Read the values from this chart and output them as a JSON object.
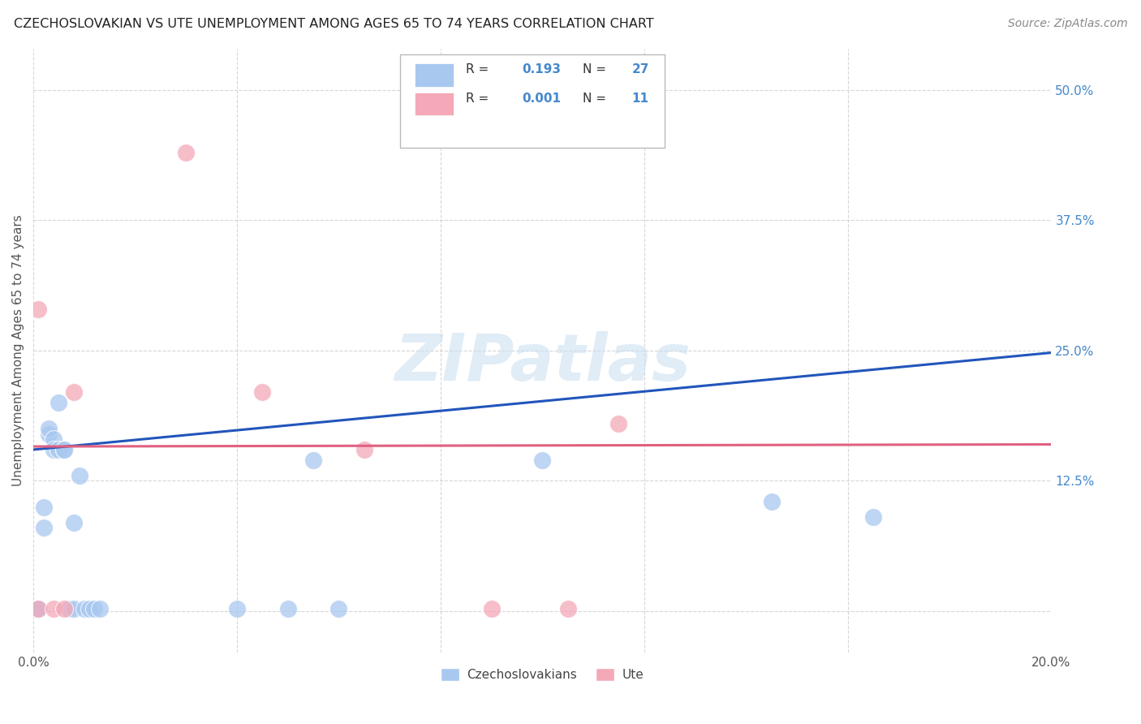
{
  "title": "CZECHOSLOVAKIAN VS UTE UNEMPLOYMENT AMONG AGES 65 TO 74 YEARS CORRELATION CHART",
  "source": "Source: ZipAtlas.com",
  "ylabel": "Unemployment Among Ages 65 to 74 years",
  "xlim": [
    0.0,
    0.2
  ],
  "ylim": [
    -0.04,
    0.54
  ],
  "xticks": [
    0.0,
    0.04,
    0.08,
    0.12,
    0.16,
    0.2
  ],
  "xticklabels": [
    "0.0%",
    "",
    "",
    "",
    "",
    "20.0%"
  ],
  "yticks": [
    0.0,
    0.125,
    0.25,
    0.375,
    0.5
  ],
  "yticklabels": [
    "",
    "12.5%",
    "25.0%",
    "37.5%",
    "50.0%"
  ],
  "blue_R": "0.193",
  "blue_N": "27",
  "pink_R": "0.001",
  "pink_N": "11",
  "blue_color": "#a8c8f0",
  "pink_color": "#f4a8b8",
  "line_blue": "#2255bb",
  "line_pink": "#e06080",
  "blue_scatter": [
    [
      0.001,
      0.002
    ],
    [
      0.001,
      0.002
    ],
    [
      0.002,
      0.08
    ],
    [
      0.002,
      0.1
    ],
    [
      0.003,
      0.17
    ],
    [
      0.003,
      0.175
    ],
    [
      0.004,
      0.165
    ],
    [
      0.004,
      0.155
    ],
    [
      0.005,
      0.2
    ],
    [
      0.005,
      0.155
    ],
    [
      0.006,
      0.155
    ],
    [
      0.006,
      0.155
    ],
    [
      0.007,
      0.002
    ],
    [
      0.008,
      0.002
    ],
    [
      0.008,
      0.085
    ],
    [
      0.009,
      0.13
    ],
    [
      0.01,
      0.002
    ],
    [
      0.011,
      0.002
    ],
    [
      0.012,
      0.002
    ],
    [
      0.013,
      0.002
    ],
    [
      0.04,
      0.002
    ],
    [
      0.05,
      0.002
    ],
    [
      0.055,
      0.145
    ],
    [
      0.06,
      0.002
    ],
    [
      0.1,
      0.145
    ],
    [
      0.145,
      0.105
    ],
    [
      0.165,
      0.09
    ]
  ],
  "pink_scatter": [
    [
      0.001,
      0.002
    ],
    [
      0.001,
      0.29
    ],
    [
      0.004,
      0.002
    ],
    [
      0.006,
      0.002
    ],
    [
      0.008,
      0.21
    ],
    [
      0.03,
      0.44
    ],
    [
      0.045,
      0.21
    ],
    [
      0.065,
      0.155
    ],
    [
      0.09,
      0.002
    ],
    [
      0.115,
      0.18
    ],
    [
      0.105,
      0.002
    ]
  ],
  "blue_line_x": [
    0.0,
    0.2
  ],
  "blue_line_y": [
    0.155,
    0.248
  ],
  "pink_line_x": [
    0.0,
    0.2
  ],
  "pink_line_y": [
    0.158,
    0.16
  ],
  "watermark_text": "ZIPatlas",
  "watermark_color": "#cce0f0",
  "background_color": "#ffffff",
  "grid_color": "#cccccc",
  "legend_label_blue": "Czechoslovakians",
  "legend_label_pink": "Ute"
}
